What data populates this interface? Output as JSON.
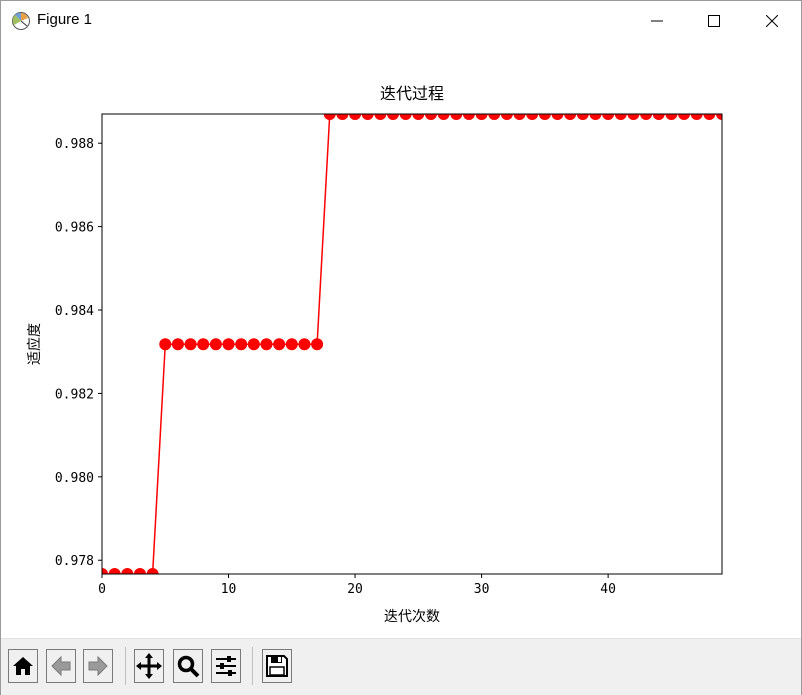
{
  "window": {
    "title": "Figure 1",
    "icons": [
      "app-icon",
      "minimize-icon",
      "maximize-icon",
      "close-icon"
    ]
  },
  "toolbar": {
    "buttons": [
      "home-icon",
      "back-icon",
      "forward-icon",
      "pan-icon",
      "zoom-icon",
      "configure-subplots-icon",
      "save-icon"
    ]
  },
  "chart_data": {
    "type": "line",
    "title": "迭代过程",
    "xlabel": "迭代次数",
    "ylabel": "适应度",
    "xlim": [
      0,
      49
    ],
    "ylim": [
      0.97767,
      0.9887
    ],
    "xticks": [
      0,
      10,
      20,
      30,
      40
    ],
    "yticks": [
      0.978,
      0.98,
      0.982,
      0.984,
      0.986,
      0.988
    ],
    "ytick_labels": [
      "0.978",
      "0.980",
      "0.982",
      "0.984",
      "0.986",
      "0.988"
    ],
    "grid": false,
    "series": [
      {
        "color": "#ff0000",
        "marker": "circle",
        "x": [
          0,
          1,
          2,
          3,
          4,
          5,
          6,
          7,
          8,
          9,
          10,
          11,
          12,
          13,
          14,
          15,
          16,
          17,
          18,
          19,
          20,
          21,
          22,
          23,
          24,
          25,
          26,
          27,
          28,
          29,
          30,
          31,
          32,
          33,
          34,
          35,
          36,
          37,
          38,
          39,
          40,
          41,
          42,
          43,
          44,
          45,
          46,
          47,
          48,
          49
        ],
        "values": [
          0.97767,
          0.97767,
          0.97767,
          0.97767,
          0.97767,
          0.98318,
          0.98318,
          0.98318,
          0.98318,
          0.98318,
          0.98318,
          0.98318,
          0.98318,
          0.98318,
          0.98318,
          0.98318,
          0.98318,
          0.98318,
          0.9887,
          0.9887,
          0.9887,
          0.9887,
          0.9887,
          0.9887,
          0.9887,
          0.9887,
          0.9887,
          0.9887,
          0.9887,
          0.9887,
          0.9887,
          0.9887,
          0.9887,
          0.9887,
          0.9887,
          0.9887,
          0.9887,
          0.9887,
          0.9887,
          0.9887,
          0.9887,
          0.9887,
          0.9887,
          0.9887,
          0.9887,
          0.9887,
          0.9887,
          0.9887,
          0.9887,
          0.9887
        ]
      }
    ]
  }
}
